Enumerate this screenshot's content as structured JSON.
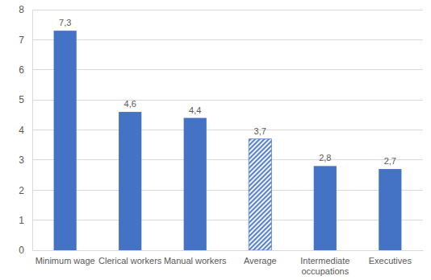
{
  "chart_data": {
    "type": "bar",
    "categories": [
      "Minimum wage",
      "Clerical workers",
      "Manual workers",
      "Average",
      "Intermediate occupations",
      "Executives"
    ],
    "values": [
      7.3,
      4.6,
      4.4,
      3.7,
      2.8,
      2.7
    ],
    "value_labels": [
      "7,3",
      "4,6",
      "4,4",
      "3,7",
      "2,8",
      "2,7"
    ],
    "data_labels": true,
    "color": "#4472c4",
    "colors": [
      "#4472c4",
      "#4472c4",
      "#4472c4",
      "#5a82c9",
      "#4472c4",
      "#4472c4"
    ],
    "ylim": [
      0,
      8
    ],
    "yticks": [
      0,
      1,
      2,
      3,
      4,
      5,
      6,
      7,
      8
    ],
    "grid": true
  }
}
